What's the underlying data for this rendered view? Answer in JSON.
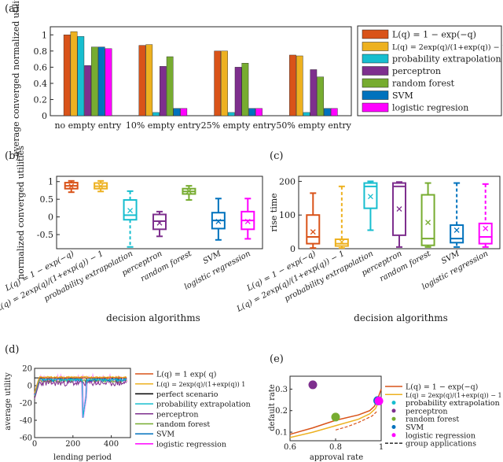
{
  "colors": {
    "exp": "#d95319",
    "logistic": "#edb120",
    "prob_extrap": "#17becf",
    "perceptron": "#7e2f8e",
    "random_forest": "#77ac30",
    "svm": "#0072bd",
    "logistic_regression": "#ff00ff",
    "perfect": "#000000"
  },
  "panel_labels": {
    "a": "(a)",
    "b": "(b)",
    "c": "(c)",
    "d": "(d)",
    "e": "(e)"
  },
  "legend_a": {
    "items": [
      {
        "key": "exp",
        "label": "L(q) = 1 − exp(−q)"
      },
      {
        "key": "logistic",
        "label": "L(q) = 2exp(q)/(1+exp(q)) − 1"
      },
      {
        "key": "prob_extrap",
        "label": "probability extrapolation"
      },
      {
        "key": "perceptron",
        "label": "perceptron"
      },
      {
        "key": "random_forest",
        "label": "random forest"
      },
      {
        "key": "svm",
        "label": "SVM"
      },
      {
        "key": "logistic_regression",
        "label": "logistic regresion"
      }
    ]
  },
  "legend_d": {
    "items": [
      {
        "key": "exp",
        "label": "L(q) = 1    exp(    q)"
      },
      {
        "key": "logistic",
        "label": "L(q) = 2exp(q)/(1+exp(q))    1"
      },
      {
        "key": "perfect",
        "label": "perfect scenario"
      },
      {
        "key": "prob_extrap",
        "label": "probability extrapolation"
      },
      {
        "key": "perceptron",
        "label": "perceptron"
      },
      {
        "key": "random_forest",
        "label": "random forest"
      },
      {
        "key": "svm",
        "label": "SVM"
      },
      {
        "key": "logistic_regression",
        "label": "logistic regression"
      }
    ]
  },
  "legend_e": {
    "items": [
      {
        "key": "exp",
        "kind": "line",
        "label": "L(q) = 1 − exp(−q)"
      },
      {
        "key": "logistic",
        "kind": "line",
        "label": "L(q) = 2exp(q)/(1+exp(q)) − 1"
      },
      {
        "key": "prob_extrap",
        "kind": "dot",
        "label": "probability extrapolation"
      },
      {
        "key": "perceptron",
        "kind": "dot",
        "label": "perceptron"
      },
      {
        "key": "random_forest",
        "kind": "dot",
        "label": "random forest"
      },
      {
        "key": "svm",
        "kind": "dot",
        "label": "SVM"
      },
      {
        "key": "logistic_regression",
        "kind": "dot",
        "label": "logistic regression"
      },
      {
        "key": "perfect",
        "kind": "dash",
        "label": "group applications"
      }
    ]
  },
  "chart_data": [
    {
      "panel": "a",
      "type": "bar",
      "ylabel": "average converged normalized utilities",
      "ylim": [
        0,
        1.1
      ],
      "yticks": [
        0,
        0.2,
        0.4,
        0.6,
        0.8,
        1
      ],
      "categories": [
        "no empty entry",
        "10% empty entry",
        "25% empty entry",
        "50% empty entry"
      ],
      "series": [
        {
          "name": "L(q) = 1 − exp(−q)",
          "color_key": "exp",
          "values": [
            1.0,
            0.87,
            0.8,
            0.75
          ]
        },
        {
          "name": "L(q) = 2exp(q)/(1+exp(q)) − 1",
          "color_key": "logistic",
          "values": [
            1.04,
            0.88,
            0.8,
            0.74
          ]
        },
        {
          "name": "probability extrapolation",
          "color_key": "prob_extrap",
          "values": [
            0.98,
            0.04,
            0.04,
            0.04
          ]
        },
        {
          "name": "perceptron",
          "color_key": "perceptron",
          "values": [
            0.62,
            0.61,
            0.6,
            0.57
          ]
        },
        {
          "name": "random forest",
          "color_key": "random_forest",
          "values": [
            0.85,
            0.73,
            0.65,
            0.48
          ]
        },
        {
          "name": "SVM",
          "color_key": "svm",
          "values": [
            0.85,
            0.09,
            0.09,
            0.09
          ]
        },
        {
          "name": "logistic regresion",
          "color_key": "logistic_regression",
          "values": [
            0.83,
            0.09,
            0.09,
            0.09
          ]
        }
      ]
    },
    {
      "panel": "b",
      "type": "box",
      "xlabel": "decision algorithms",
      "ylabel": "normalized converged utilities",
      "ylim": [
        -0.9,
        1.15
      ],
      "yticks": [
        -0.5,
        0,
        0.5,
        1
      ],
      "categories": [
        "L(q) = 1 − exp(−q)",
        "L(q) = 2exp(q)/(1+exp(q)) − 1",
        "probability extrapolation",
        "perceptron",
        "random forest",
        "SVM",
        "logistic regression"
      ],
      "boxes": [
        {
          "color_key": "exp",
          "min": 0.7,
          "q1": 0.8,
          "median": 0.88,
          "q3": 0.97,
          "max": 1.02,
          "mean": 0.87
        },
        {
          "color_key": "logistic",
          "min": 0.72,
          "q1": 0.8,
          "median": 0.87,
          "q3": 0.96,
          "max": 1.02,
          "mean": 0.87
        },
        {
          "color_key": "prob_extrap",
          "min": -0.85,
          "q1": -0.08,
          "median": 0.05,
          "q3": 0.48,
          "max": 0.73,
          "mean": 0.18
        },
        {
          "color_key": "perceptron",
          "min": -0.55,
          "q1": -0.35,
          "median": -0.12,
          "q3": 0.07,
          "max": 0.15,
          "mean": -0.17
        },
        {
          "color_key": "random_forest",
          "min": 0.48,
          "q1": 0.65,
          "median": 0.72,
          "q3": 0.8,
          "max": 0.88,
          "mean": 0.73
        },
        {
          "color_key": "svm",
          "min": -0.65,
          "q1": -0.33,
          "median": -0.1,
          "q3": 0.12,
          "max": 0.52,
          "mean": -0.13
        },
        {
          "color_key": "logistic_regression",
          "min": -0.62,
          "q1": -0.35,
          "median": -0.1,
          "q3": 0.15,
          "max": 0.52,
          "mean": -0.13
        }
      ]
    },
    {
      "panel": "c",
      "type": "box",
      "xlabel": "decision algorithms",
      "ylabel": "rise time",
      "ylim": [
        0,
        215
      ],
      "yticks": [
        0,
        100,
        200
      ],
      "categories": [
        "L(q) = 1 − exp(−q)",
        "L(q) = 2exp(q)/(1+exp(q)) − 1",
        "probability extrapolation",
        "perceptron",
        "random forest",
        "SVM",
        "logistic regression"
      ],
      "boxes": [
        {
          "color_key": "exp",
          "min": 2,
          "q1": 15,
          "median": 35,
          "q3": 100,
          "max": 165,
          "mean": 50
        },
        {
          "color_key": "logistic",
          "min": 2,
          "q1": 8,
          "median": 15,
          "q3": 28,
          "max": 185,
          "mean": 20
        },
        {
          "color_key": "prob_extrap",
          "min": 55,
          "q1": 120,
          "median": 185,
          "q3": 195,
          "max": 200,
          "mean": 155
        },
        {
          "color_key": "perceptron",
          "min": 5,
          "q1": 40,
          "median": 185,
          "q3": 195,
          "max": 198,
          "mean": 118
        },
        {
          "color_key": "random_forest",
          "min": 5,
          "q1": 10,
          "median": 30,
          "q3": 160,
          "max": 195,
          "mean": 78
        },
        {
          "color_key": "svm",
          "min": 5,
          "q1": 18,
          "median": 30,
          "q3": 70,
          "max": 195,
          "mean": 55
        },
        {
          "color_key": "logistic_regression",
          "min": 5,
          "q1": 15,
          "median": 35,
          "q3": 75,
          "max": 192,
          "mean": 60
        }
      ]
    },
    {
      "panel": "d",
      "type": "line",
      "xlabel": "lending period",
      "ylabel": "average utility",
      "xlim": [
        0,
        500
      ],
      "ylim": [
        -60,
        20
      ],
      "xticks": [
        0,
        200,
        400
      ],
      "yticks": [
        -60,
        -40,
        -20,
        0,
        20
      ]
    },
    {
      "panel": "e",
      "type": "scatter",
      "xlabel": "approval rate",
      "ylabel": "default rate",
      "xlim": [
        0.6,
        1.0
      ],
      "ylim": [
        0.06,
        0.36
      ],
      "xticks": [
        0.6,
        0.8,
        1
      ],
      "yticks": [
        0.1,
        0.2,
        0.3
      ],
      "points": [
        {
          "color_key": "perceptron",
          "x": 0.7,
          "y": 0.32
        },
        {
          "color_key": "random_forest",
          "x": 0.8,
          "y": 0.17
        },
        {
          "color_key": "prob_extrap",
          "x": 0.985,
          "y": 0.245
        },
        {
          "color_key": "svm",
          "x": 0.985,
          "y": 0.247
        },
        {
          "color_key": "logistic_regression",
          "x": 0.99,
          "y": 0.245
        }
      ],
      "curves": [
        {
          "color_key": "exp",
          "x": [
            0.6,
            0.7,
            0.8,
            0.9,
            0.95,
            0.97,
            0.985,
            1.0
          ],
          "y": [
            0.09,
            0.12,
            0.155,
            0.18,
            0.2,
            0.22,
            0.255,
            0.3
          ]
        },
        {
          "color_key": "logistic",
          "x": [
            0.6,
            0.7,
            0.8,
            0.9,
            0.95,
            0.975,
            0.99
          ],
          "y": [
            0.075,
            0.1,
            0.13,
            0.16,
            0.185,
            0.21,
            0.245
          ]
        }
      ],
      "dashed_curve": {
        "x": [
          0.8,
          0.85,
          0.9,
          0.93,
          0.96,
          0.98
        ],
        "y": [
          0.11,
          0.125,
          0.145,
          0.16,
          0.175,
          0.195
        ]
      }
    }
  ]
}
